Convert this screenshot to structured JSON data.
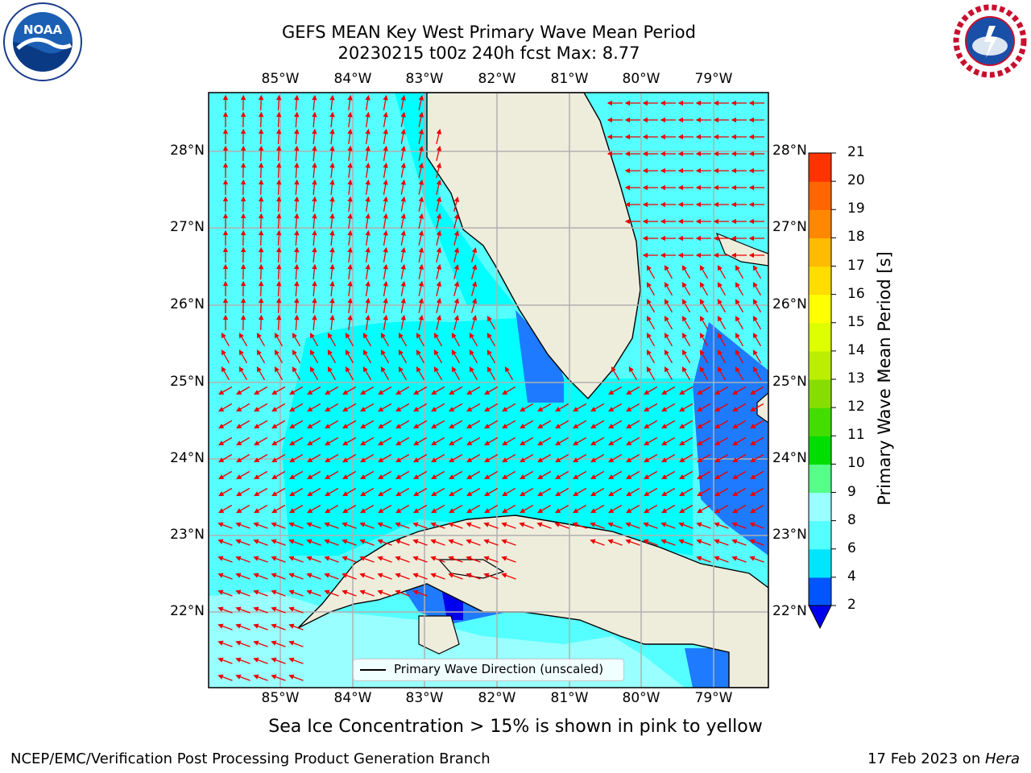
{
  "title_line1": "GEFS MEAN Key West Primary Wave Mean Period",
  "title_line2": "20230215 t00z 240h fcst   Max: 8.77",
  "map": {
    "lon_labels": [
      "85°W",
      "84°W",
      "83°W",
      "82°W",
      "81°W",
      "80°W",
      "79°W"
    ],
    "lat_labels": [
      "28°N",
      "27°N",
      "26°N",
      "25°N",
      "24°N",
      "23°N",
      "22°N"
    ],
    "legend_label": "Primary Wave Direction (unscaled)"
  },
  "colorbar": {
    "title": "Primary Wave Mean Period [s]",
    "ticks": [
      "2",
      "4",
      "6",
      "8",
      "9",
      "10",
      "11",
      "12",
      "13",
      "14",
      "15",
      "16",
      "17",
      "18",
      "19",
      "20",
      "21"
    ],
    "colors": [
      "#0055ff",
      "#00e5ff",
      "#55ffff",
      "#99ffff",
      "#55ff88",
      "#00dd00",
      "#44dd00",
      "#88dd00",
      "#bbee00",
      "#ddff00",
      "#ffff00",
      "#ffdd00",
      "#ffbb00",
      "#ff8800",
      "#ff6600",
      "#ff3300",
      "#ff0000"
    ],
    "extend_color": "#0000ee"
  },
  "subtitle": "Sea Ice Concentration > 15% is shown in pink to yellow",
  "footer_left": "NCEP/EMC/Verification Post Processing Product Generation Branch",
  "footer_right_date": "17 Feb 2023 on ",
  "footer_right_host": "Hera",
  "logos": {
    "noaa_text": "NOAA",
    "nws_text": "NATIONAL WEATHER SERVICE"
  },
  "colors": {
    "land": "#eeeddc",
    "arrow": "#ee0000",
    "grid": "#b0b0b0"
  }
}
